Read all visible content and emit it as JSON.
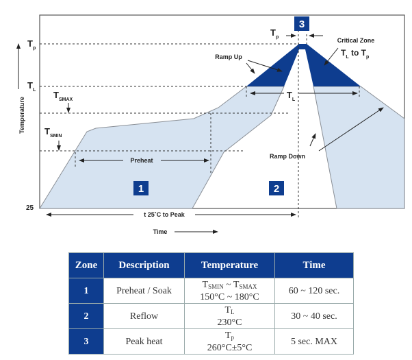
{
  "diagram": {
    "y_axis_label": "Temperature",
    "x_axis_label": "Time",
    "baseline_label": "25",
    "levels": {
      "tp": {
        "main": "T",
        "sub": "p"
      },
      "tl": {
        "main": "T",
        "sub": "L"
      },
      "tsmax": {
        "main": "T",
        "sub": "SMAX"
      },
      "tsmin": {
        "main": "T",
        "sub": "SMIN"
      }
    },
    "zone_badges": [
      "1",
      "2",
      "3"
    ],
    "preheat_label": "Preheat",
    "t25_label": "t 25˚C to Peak",
    "tl_span_label": {
      "main": "T",
      "sub": "L"
    },
    "tp_span_label": {
      "main": "T",
      "sub": "p"
    },
    "ramp_up_label": "Ramp Up",
    "ramp_down_label": "Ramp Down",
    "critical_zone_label": "Critical Zone",
    "critical_zone_range": {
      "a": "T",
      "a_sub": "L",
      "to": " to ",
      "b": "T",
      "b_sub": "p"
    },
    "colors": {
      "light": "#d6e3f1",
      "dark": "#0e3d8f",
      "outline": "#8a8f96"
    }
  },
  "table": {
    "headers": [
      "Zone",
      "Description",
      "Temperature",
      "Time"
    ],
    "rows": [
      {
        "zone": "1",
        "description": "Preheat / Soak",
        "temp_symbol": "T",
        "temp_sub": "SMIN",
        "temp_sep": " ~ ",
        "temp_symbol2": "T",
        "temp_sub2": "SMAX",
        "temp_value": "150°C ~ 180°C",
        "time": "60 ~ 120 sec."
      },
      {
        "zone": "2",
        "description": "Reflow",
        "temp_symbol": "T",
        "temp_sub": "L",
        "temp_value": "230°C",
        "time": "30 ~ 40 sec."
      },
      {
        "zone": "3",
        "description": "Peak heat",
        "temp_symbol": "T",
        "temp_sub": "p",
        "temp_value": "260°C±5°C",
        "time": "5 sec. MAX"
      }
    ]
  }
}
